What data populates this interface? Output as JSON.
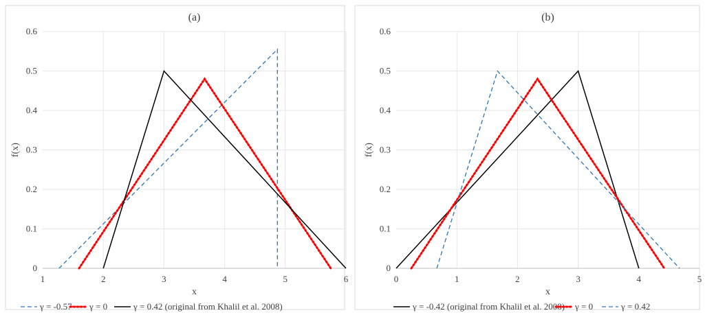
{
  "chart_data": [
    {
      "type": "line",
      "title": "(a)",
      "xlabel": "x",
      "ylabel": "f(x)",
      "xlim": [
        1,
        6
      ],
      "ylim": [
        0,
        0.6
      ],
      "xticks": [
        "1",
        "2",
        "3",
        "4",
        "5",
        "6"
      ],
      "yticks": [
        "0",
        "0.1",
        "0.2",
        "0.3",
        "0.4",
        "0.5",
        "0.6"
      ],
      "grid": true,
      "legend_position": "bottom",
      "series": [
        {
          "name": "γ = -0.57",
          "color": "#2e75b6",
          "dash": "dashed",
          "x": [
            1.27,
            4.87,
            4.87
          ],
          "y": [
            0,
            0.555,
            0
          ]
        },
        {
          "name": "γ = 0",
          "color": "#ff0000",
          "dash": "dotted",
          "x": [
            1.6,
            3.67,
            5.75
          ],
          "y": [
            0,
            0.48,
            0
          ]
        },
        {
          "name": "γ = 0.42 (original from Khalil et al. 2008)",
          "color": "#000000",
          "dash": "solid",
          "x": [
            2,
            3,
            6
          ],
          "y": [
            0,
            0.5,
            0
          ]
        }
      ]
    },
    {
      "type": "line",
      "title": "(b)",
      "xlabel": "x",
      "ylabel": "f(x)",
      "xlim": [
        0,
        5
      ],
      "ylim": [
        0,
        0.6
      ],
      "xticks": [
        "0",
        "1",
        "2",
        "3",
        "4",
        "5"
      ],
      "yticks": [
        "0",
        "0.1",
        "0.2",
        "0.3",
        "0.4",
        "0.5",
        "0.6"
      ],
      "grid": true,
      "legend_position": "bottom",
      "series": [
        {
          "name": "γ = -0.42 (original from Khalil et al. 2008)",
          "color": "#000000",
          "dash": "solid",
          "x": [
            0,
            3,
            4
          ],
          "y": [
            0,
            0.5,
            0
          ]
        },
        {
          "name": "γ = 0",
          "color": "#ff0000",
          "dash": "dotted",
          "x": [
            0.25,
            2.33,
            4.42
          ],
          "y": [
            0,
            0.48,
            0
          ]
        },
        {
          "name": "γ = 0.42",
          "color": "#2e75b6",
          "dash": "dashed",
          "x": [
            0.67,
            1.67,
            4.67
          ],
          "y": [
            0,
            0.5,
            0
          ]
        }
      ]
    }
  ]
}
